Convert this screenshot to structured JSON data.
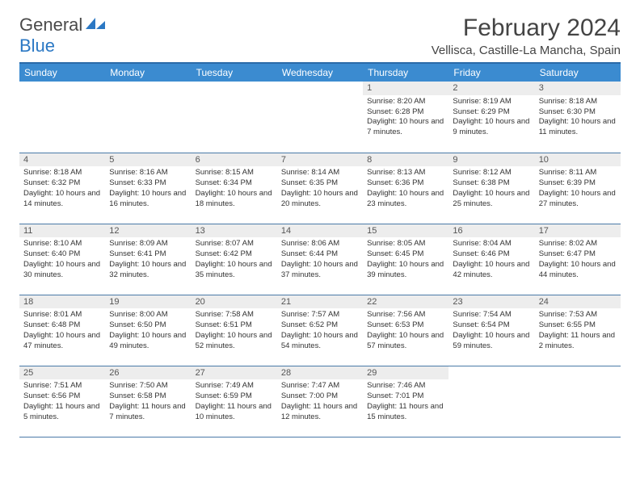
{
  "logo": {
    "part1": "General",
    "part2": "Blue"
  },
  "title": "February 2024",
  "location": "Vellisca, Castille-La Mancha, Spain",
  "weekday_labels": [
    "Sunday",
    "Monday",
    "Tuesday",
    "Wednesday",
    "Thursday",
    "Friday",
    "Saturday"
  ],
  "colors": {
    "header_bg": "#3b8bd0",
    "header_border": "#2a6aa8",
    "daynum_bg": "#ededed",
    "row_divider": "#4a7aa8",
    "logo_accent": "#2b78c4"
  },
  "first_weekday_index": 4,
  "days": [
    {
      "n": 1,
      "sr": "8:20 AM",
      "ss": "6:28 PM",
      "dl": "10 hours and 7 minutes."
    },
    {
      "n": 2,
      "sr": "8:19 AM",
      "ss": "6:29 PM",
      "dl": "10 hours and 9 minutes."
    },
    {
      "n": 3,
      "sr": "8:18 AM",
      "ss": "6:30 PM",
      "dl": "10 hours and 11 minutes."
    },
    {
      "n": 4,
      "sr": "8:18 AM",
      "ss": "6:32 PM",
      "dl": "10 hours and 14 minutes."
    },
    {
      "n": 5,
      "sr": "8:16 AM",
      "ss": "6:33 PM",
      "dl": "10 hours and 16 minutes."
    },
    {
      "n": 6,
      "sr": "8:15 AM",
      "ss": "6:34 PM",
      "dl": "10 hours and 18 minutes."
    },
    {
      "n": 7,
      "sr": "8:14 AM",
      "ss": "6:35 PM",
      "dl": "10 hours and 20 minutes."
    },
    {
      "n": 8,
      "sr": "8:13 AM",
      "ss": "6:36 PM",
      "dl": "10 hours and 23 minutes."
    },
    {
      "n": 9,
      "sr": "8:12 AM",
      "ss": "6:38 PM",
      "dl": "10 hours and 25 minutes."
    },
    {
      "n": 10,
      "sr": "8:11 AM",
      "ss": "6:39 PM",
      "dl": "10 hours and 27 minutes."
    },
    {
      "n": 11,
      "sr": "8:10 AM",
      "ss": "6:40 PM",
      "dl": "10 hours and 30 minutes."
    },
    {
      "n": 12,
      "sr": "8:09 AM",
      "ss": "6:41 PM",
      "dl": "10 hours and 32 minutes."
    },
    {
      "n": 13,
      "sr": "8:07 AM",
      "ss": "6:42 PM",
      "dl": "10 hours and 35 minutes."
    },
    {
      "n": 14,
      "sr": "8:06 AM",
      "ss": "6:44 PM",
      "dl": "10 hours and 37 minutes."
    },
    {
      "n": 15,
      "sr": "8:05 AM",
      "ss": "6:45 PM",
      "dl": "10 hours and 39 minutes."
    },
    {
      "n": 16,
      "sr": "8:04 AM",
      "ss": "6:46 PM",
      "dl": "10 hours and 42 minutes."
    },
    {
      "n": 17,
      "sr": "8:02 AM",
      "ss": "6:47 PM",
      "dl": "10 hours and 44 minutes."
    },
    {
      "n": 18,
      "sr": "8:01 AM",
      "ss": "6:48 PM",
      "dl": "10 hours and 47 minutes."
    },
    {
      "n": 19,
      "sr": "8:00 AM",
      "ss": "6:50 PM",
      "dl": "10 hours and 49 minutes."
    },
    {
      "n": 20,
      "sr": "7:58 AM",
      "ss": "6:51 PM",
      "dl": "10 hours and 52 minutes."
    },
    {
      "n": 21,
      "sr": "7:57 AM",
      "ss": "6:52 PM",
      "dl": "10 hours and 54 minutes."
    },
    {
      "n": 22,
      "sr": "7:56 AM",
      "ss": "6:53 PM",
      "dl": "10 hours and 57 minutes."
    },
    {
      "n": 23,
      "sr": "7:54 AM",
      "ss": "6:54 PM",
      "dl": "10 hours and 59 minutes."
    },
    {
      "n": 24,
      "sr": "7:53 AM",
      "ss": "6:55 PM",
      "dl": "11 hours and 2 minutes."
    },
    {
      "n": 25,
      "sr": "7:51 AM",
      "ss": "6:56 PM",
      "dl": "11 hours and 5 minutes."
    },
    {
      "n": 26,
      "sr": "7:50 AM",
      "ss": "6:58 PM",
      "dl": "11 hours and 7 minutes."
    },
    {
      "n": 27,
      "sr": "7:49 AM",
      "ss": "6:59 PM",
      "dl": "11 hours and 10 minutes."
    },
    {
      "n": 28,
      "sr": "7:47 AM",
      "ss": "7:00 PM",
      "dl": "11 hours and 12 minutes."
    },
    {
      "n": 29,
      "sr": "7:46 AM",
      "ss": "7:01 PM",
      "dl": "11 hours and 15 minutes."
    }
  ],
  "labels": {
    "sunrise": "Sunrise:",
    "sunset": "Sunset:",
    "daylight": "Daylight:"
  }
}
